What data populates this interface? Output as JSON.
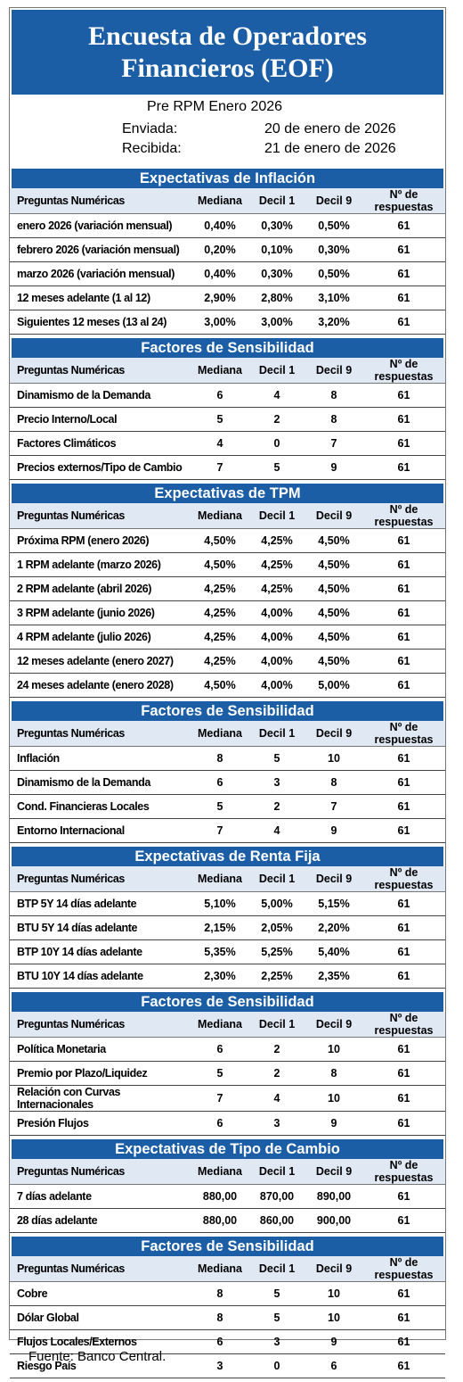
{
  "title_line1": "Encuesta de Operadores",
  "title_line2": "Financieros (EOF)",
  "subtitle": "Pre RPM Enero 2026",
  "sent_label": "Enviada:",
  "sent_value": "20 de enero de 2026",
  "received_label": "Recibida:",
  "received_value": "21 de enero de 2026",
  "columns": [
    "Mediana",
    "Decil 1",
    "Decil 9",
    "Nº de respuestas"
  ],
  "sections": [
    {
      "heading": "Expectativas de Inflación",
      "first_col": "Preguntas Numéricas",
      "rows": [
        [
          "enero 2026 (variación mensual)",
          "0,40%",
          "0,30%",
          "0,50%",
          "61"
        ],
        [
          "febrero 2026 (variación mensual)",
          "0,20%",
          "0,10%",
          "0,30%",
          "61"
        ],
        [
          "marzo 2026 (variación mensual)",
          "0,40%",
          "0,30%",
          "0,50%",
          "61"
        ],
        [
          "12 meses adelante (1 al 12)",
          "2,90%",
          "2,80%",
          "3,10%",
          "61"
        ],
        [
          "Siguientes 12 meses (13 al 24)",
          "3,00%",
          "3,00%",
          "3,20%",
          "61"
        ]
      ]
    },
    {
      "heading": "Factores de Sensibilidad",
      "first_col": "Preguntas Numéricas",
      "rows": [
        [
          "Dinamismo de la Demanda",
          "6",
          "4",
          "8",
          "61"
        ],
        [
          "Precio Interno/Local",
          "5",
          "2",
          "8",
          "61"
        ],
        [
          "Factores Climáticos",
          "4",
          "0",
          "7",
          "61"
        ],
        [
          "Precios externos/Tipo de Cambio",
          "7",
          "5",
          "9",
          "61"
        ]
      ]
    },
    {
      "heading": "Expectativas de TPM",
      "first_col": "Preguntas Numéricas",
      "rows": [
        [
          "Próxima RPM (enero 2026)",
          "4,50%",
          "4,25%",
          "4,50%",
          "61"
        ],
        [
          "1 RPM adelante (marzo 2026)",
          "4,50%",
          "4,25%",
          "4,50%",
          "61"
        ],
        [
          "2 RPM adelante (abril 2026)",
          "4,25%",
          "4,25%",
          "4,50%",
          "61"
        ],
        [
          "3 RPM adelante (junio 2026)",
          "4,25%",
          "4,00%",
          "4,50%",
          "61"
        ],
        [
          "4 RPM adelante (julio 2026)",
          "4,25%",
          "4,00%",
          "4,50%",
          "61"
        ],
        [
          "12 meses adelante (enero 2027)",
          "4,25%",
          "4,00%",
          "4,50%",
          "61"
        ],
        [
          "24 meses adelante (enero 2028)",
          "4,50%",
          "4,00%",
          "5,00%",
          "61"
        ]
      ]
    },
    {
      "heading": "Factores de Sensibilidad",
      "first_col": "Preguntas Numéricas",
      "rows": [
        [
          "Inflación",
          "8",
          "5",
          "10",
          "61"
        ],
        [
          "Dinamismo de la Demanda",
          "6",
          "3",
          "8",
          "61"
        ],
        [
          "Cond. Financieras Locales",
          "5",
          "2",
          "7",
          "61"
        ],
        [
          "Entorno Internacional",
          "7",
          "4",
          "9",
          "61"
        ]
      ]
    },
    {
      "heading": "Expectativas  de Renta Fija",
      "first_col": "Preguntas Numéricas",
      "rows": [
        [
          "BTP 5Y 14 días adelante",
          "5,10%",
          "5,00%",
          "5,15%",
          "61"
        ],
        [
          "BTU 5Y 14 días adelante",
          "2,15%",
          "2,05%",
          "2,20%",
          "61"
        ],
        [
          "BTP 10Y 14 días adelante",
          "5,35%",
          "5,25%",
          "5,40%",
          "61"
        ],
        [
          "BTU 10Y 14 días adelante",
          "2,30%",
          "2,25%",
          "2,35%",
          "61"
        ]
      ]
    },
    {
      "heading": "Factores de Sensibilidad",
      "first_col": "Preguntas Numéricas",
      "rows": [
        [
          "Política Monetaria",
          "6",
          "2",
          "10",
          "61"
        ],
        [
          "Premio por Plazo/Liquidez",
          "5",
          "2",
          "8",
          "61"
        ],
        [
          "Relación con Curvas Internacionales",
          "7",
          "4",
          "10",
          "61"
        ],
        [
          "Presión Flujos",
          "6",
          "3",
          "9",
          "61"
        ]
      ]
    },
    {
      "heading": "Expectativas  de Tipo de Cambio",
      "first_col": "Preguntas Numéricas",
      "rows": [
        [
          "7 días adelante",
          "880,00",
          "870,00",
          "890,00",
          "61"
        ],
        [
          "28 días adelante",
          "880,00",
          "860,00",
          "900,00",
          "61"
        ]
      ]
    },
    {
      "heading": "Factores de Sensibilidad",
      "first_col": "Preguntas Numéricas",
      "rows": [
        [
          "Cobre",
          "8",
          "5",
          "10",
          "61"
        ],
        [
          "Dólar Global",
          "8",
          "5",
          "10",
          "61"
        ],
        [
          "Flujos Locales/Externos",
          "6",
          "3",
          "9",
          "61"
        ],
        [
          "Riesgo País",
          "3",
          "0",
          "6",
          "61"
        ]
      ]
    }
  ],
  "footer": "Fuente: Banco Central.",
  "colors": {
    "header_blue": "#1b5ea6",
    "header_row_bg": "#dfe8f3"
  }
}
